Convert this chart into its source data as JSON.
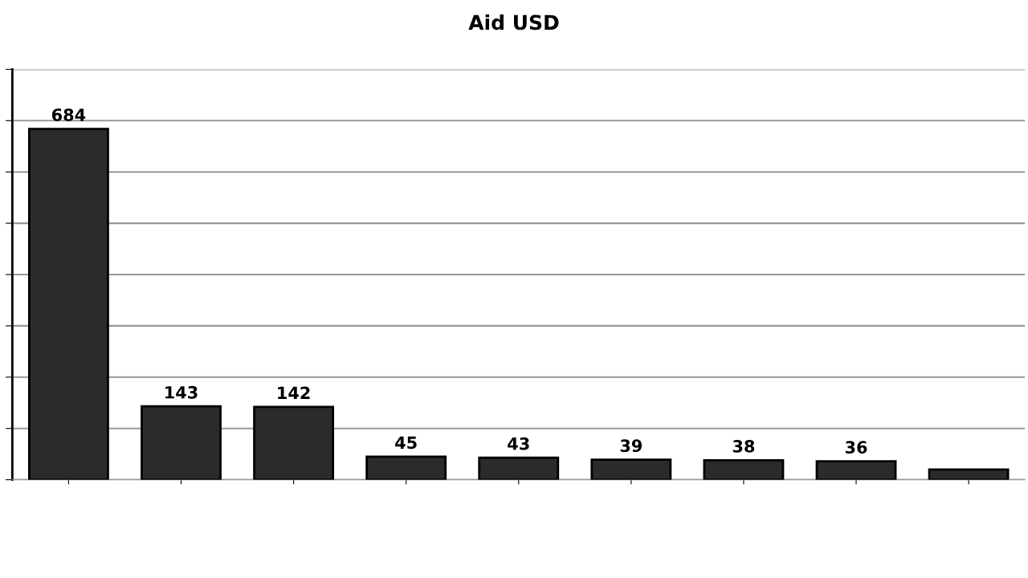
{
  "chart_data": {
    "type": "bar",
    "title": "Aid USD",
    "categories": [
      null,
      null,
      null,
      null,
      null,
      null,
      null,
      null,
      null
    ],
    "values": [
      684,
      143,
      142,
      45,
      43,
      39,
      38,
      36,
      20
    ],
    "value_labels": [
      "684",
      "143",
      "142",
      "45",
      "43",
      "39",
      "38",
      "36",
      null
    ],
    "color": "#2b2b2b",
    "ylim": [
      0,
      800
    ],
    "yticks": [
      {
        "value": 0,
        "label": null
      },
      {
        "value": 100,
        "label": null
      },
      {
        "value": 200,
        "label": null
      },
      {
        "value": 300,
        "label": null
      },
      {
        "value": 400,
        "label": null
      },
      {
        "value": 500,
        "label": null
      },
      {
        "value": 600,
        "label": null
      },
      {
        "value": 700,
        "label": null
      },
      {
        "value": 800,
        "label": null
      }
    ],
    "grid": "y"
  }
}
